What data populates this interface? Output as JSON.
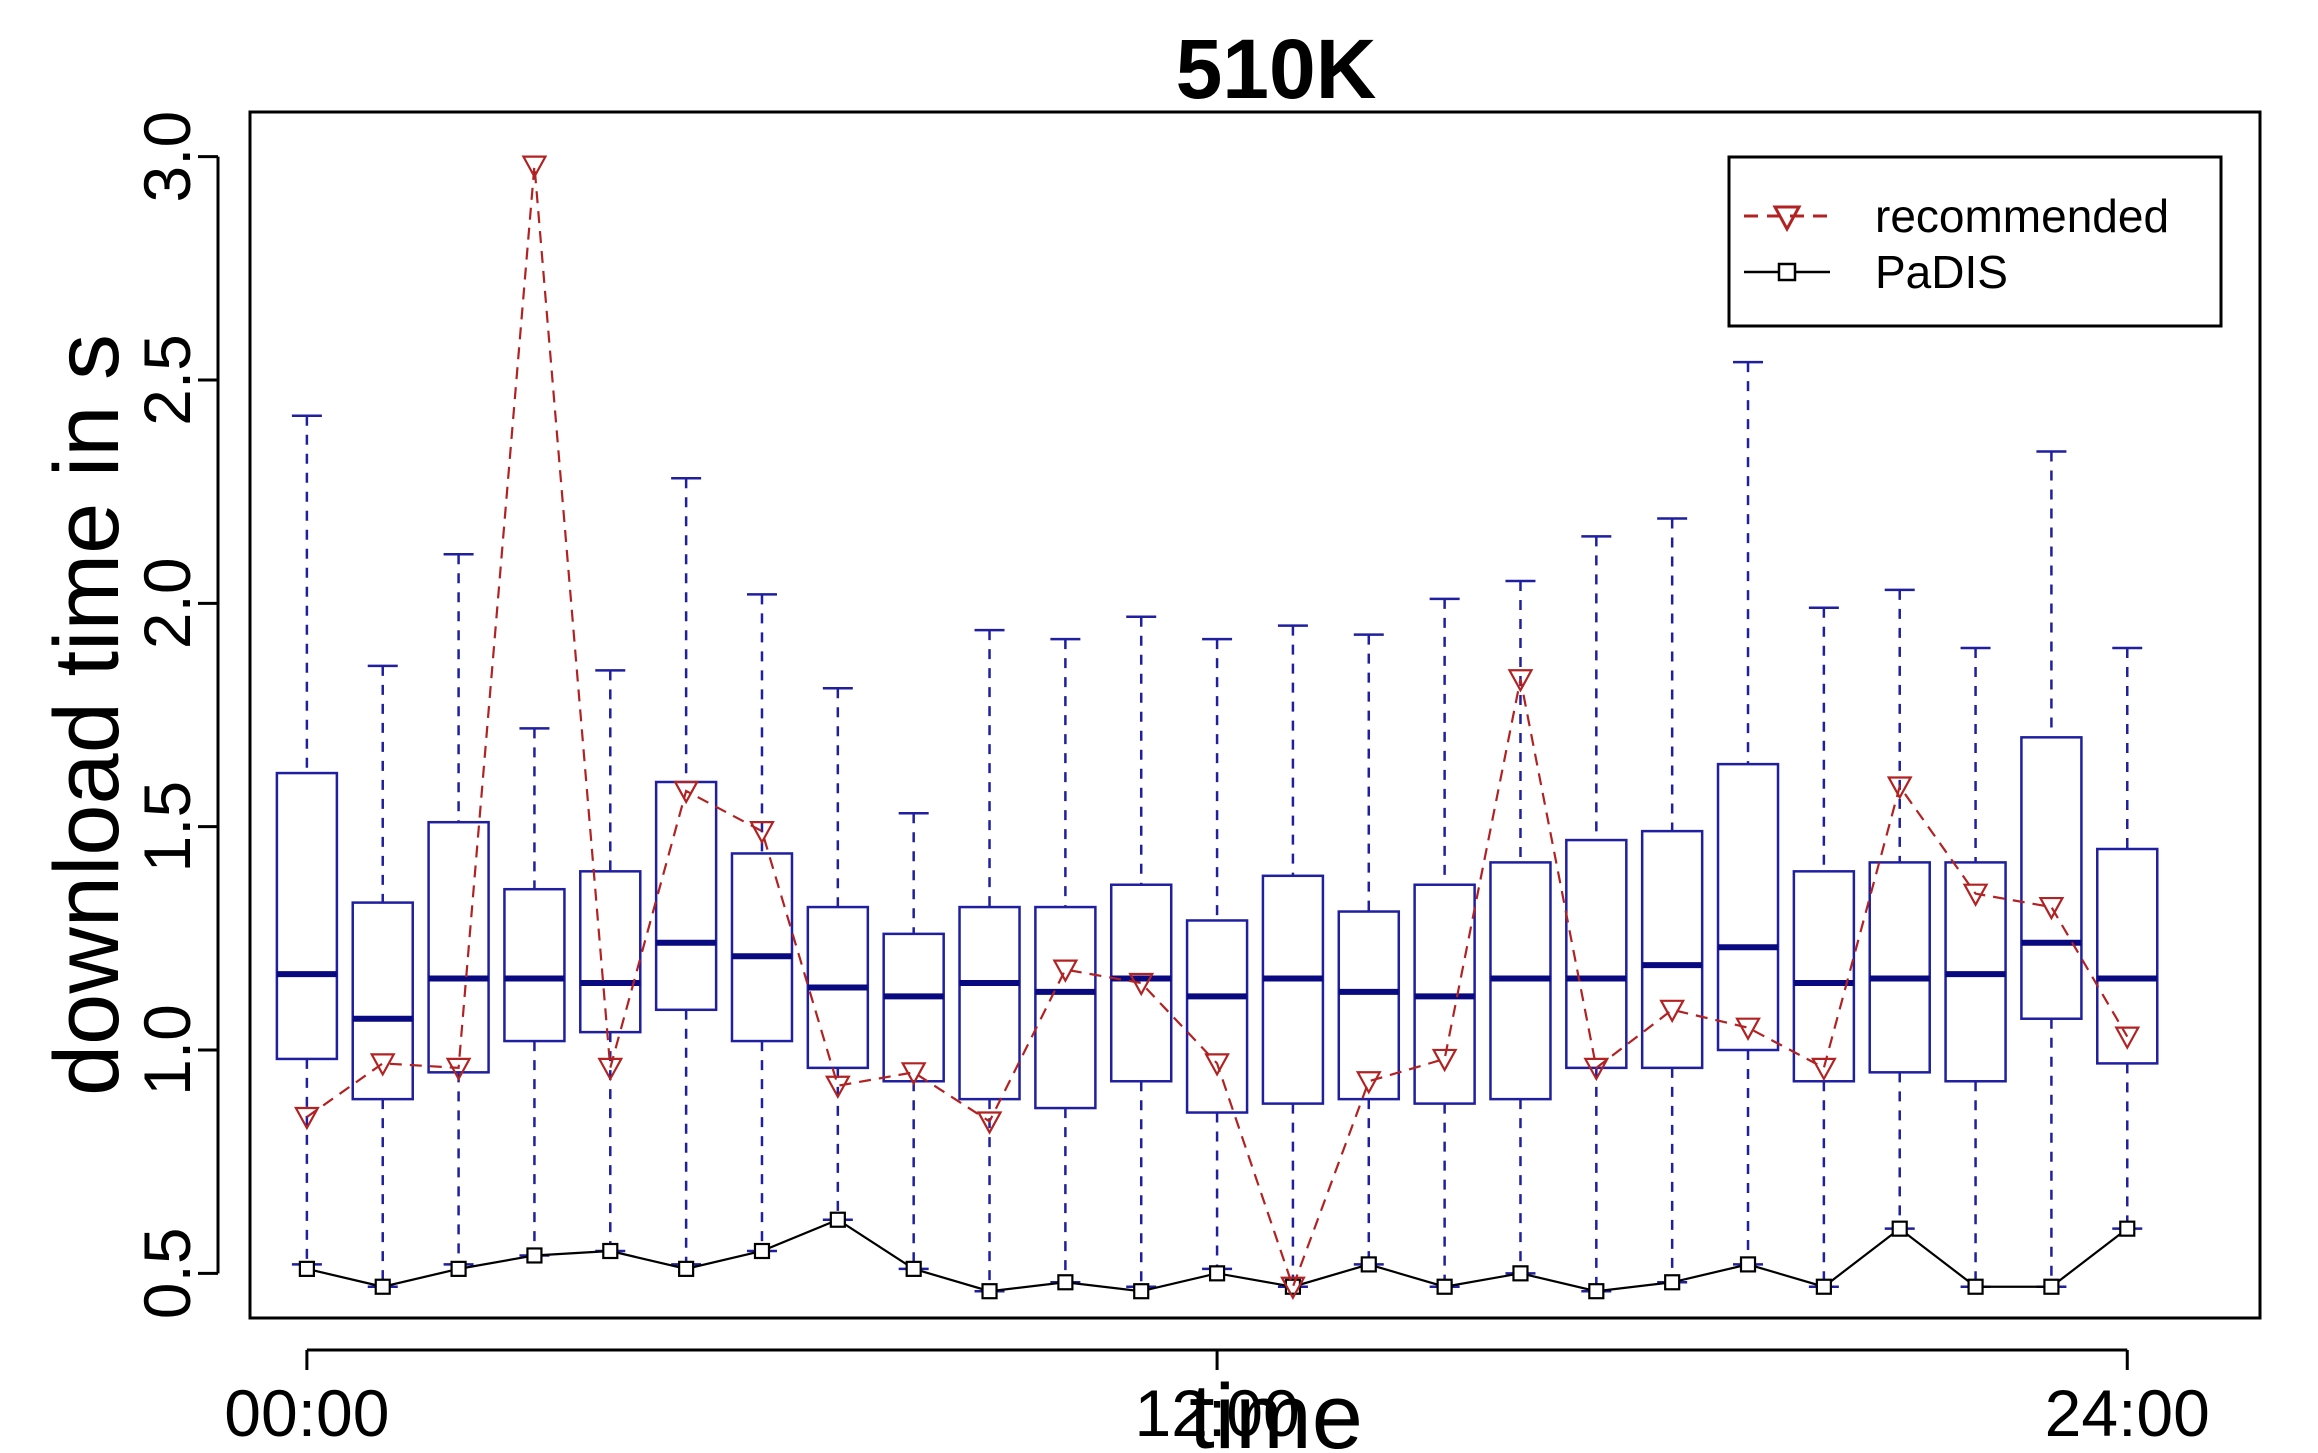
{
  "chart_data": {
    "type": "box",
    "title": "510K",
    "xlabel": "time",
    "ylabel": "download time in s",
    "ylim": [
      0.4,
      3.1
    ],
    "xlim": [
      -0.75,
      25.75
    ],
    "x_ticks": [
      {
        "x": 0,
        "label": "00:00"
      },
      {
        "x": 12,
        "label": "12:00"
      },
      {
        "x": 24,
        "label": "24:00"
      }
    ],
    "y_ticks": [
      {
        "value": 0.5,
        "label": "0.5"
      },
      {
        "value": 1.0,
        "label": "1.0"
      },
      {
        "value": 1.5,
        "label": "1.5"
      },
      {
        "value": 2.0,
        "label": "2.0"
      },
      {
        "value": 2.5,
        "label": "2.5"
      },
      {
        "value": 3.0,
        "label": "3.0"
      }
    ],
    "grid": false,
    "legend_position": "top-right",
    "colors": {
      "box": "#1f1fa0",
      "median": "#0a0a80",
      "recommended": "#b22222",
      "padis": "#000000"
    },
    "boxes": [
      {
        "x": 0,
        "lo": 0.52,
        "q1": 0.98,
        "median": 1.17,
        "q3": 1.62,
        "hi": 2.42
      },
      {
        "x": 1,
        "lo": 0.47,
        "q1": 0.89,
        "median": 1.07,
        "q3": 1.33,
        "hi": 1.86
      },
      {
        "x": 2,
        "lo": 0.52,
        "q1": 0.95,
        "median": 1.16,
        "q3": 1.51,
        "hi": 2.11
      },
      {
        "x": 3,
        "lo": 0.54,
        "q1": 1.02,
        "median": 1.16,
        "q3": 1.36,
        "hi": 1.72
      },
      {
        "x": 4,
        "lo": 0.55,
        "q1": 1.04,
        "median": 1.15,
        "q3": 1.4,
        "hi": 1.85
      },
      {
        "x": 5,
        "lo": 0.52,
        "q1": 1.09,
        "median": 1.24,
        "q3": 1.6,
        "hi": 2.28
      },
      {
        "x": 6,
        "lo": 0.55,
        "q1": 1.02,
        "median": 1.21,
        "q3": 1.44,
        "hi": 2.02
      },
      {
        "x": 7,
        "lo": 0.62,
        "q1": 0.96,
        "median": 1.14,
        "q3": 1.32,
        "hi": 1.81
      },
      {
        "x": 8,
        "lo": 0.51,
        "q1": 0.93,
        "median": 1.12,
        "q3": 1.26,
        "hi": 1.53
      },
      {
        "x": 9,
        "lo": 0.46,
        "q1": 0.89,
        "median": 1.15,
        "q3": 1.32,
        "hi": 1.94
      },
      {
        "x": 10,
        "lo": 0.48,
        "q1": 0.87,
        "median": 1.13,
        "q3": 1.32,
        "hi": 1.92
      },
      {
        "x": 11,
        "lo": 0.47,
        "q1": 0.93,
        "median": 1.16,
        "q3": 1.37,
        "hi": 1.97
      },
      {
        "x": 12,
        "lo": 0.51,
        "q1": 0.86,
        "median": 1.12,
        "q3": 1.29,
        "hi": 1.92
      },
      {
        "x": 13,
        "lo": 0.47,
        "q1": 0.88,
        "median": 1.16,
        "q3": 1.39,
        "hi": 1.95
      },
      {
        "x": 14,
        "lo": 0.52,
        "q1": 0.89,
        "median": 1.13,
        "q3": 1.31,
        "hi": 1.93
      },
      {
        "x": 15,
        "lo": 0.47,
        "q1": 0.88,
        "median": 1.12,
        "q3": 1.37,
        "hi": 2.01
      },
      {
        "x": 16,
        "lo": 0.5,
        "q1": 0.89,
        "median": 1.16,
        "q3": 1.42,
        "hi": 2.05
      },
      {
        "x": 17,
        "lo": 0.46,
        "q1": 0.96,
        "median": 1.16,
        "q3": 1.47,
        "hi": 2.15
      },
      {
        "x": 18,
        "lo": 0.48,
        "q1": 0.96,
        "median": 1.19,
        "q3": 1.49,
        "hi": 2.19
      },
      {
        "x": 19,
        "lo": 0.52,
        "q1": 1.0,
        "median": 1.23,
        "q3": 1.64,
        "hi": 2.54
      },
      {
        "x": 20,
        "lo": 0.47,
        "q1": 0.93,
        "median": 1.15,
        "q3": 1.4,
        "hi": 1.99
      },
      {
        "x": 21,
        "lo": 0.6,
        "q1": 0.95,
        "median": 1.16,
        "q3": 1.42,
        "hi": 2.03
      },
      {
        "x": 22,
        "lo": 0.47,
        "q1": 0.93,
        "median": 1.17,
        "q3": 1.42,
        "hi": 1.9
      },
      {
        "x": 23,
        "lo": 0.47,
        "q1": 1.07,
        "median": 1.24,
        "q3": 1.7,
        "hi": 2.34
      },
      {
        "x": 24,
        "lo": 0.6,
        "q1": 0.97,
        "median": 1.16,
        "q3": 1.45,
        "hi": 1.9
      }
    ],
    "series": [
      {
        "name": "recommended",
        "style": "dashed",
        "marker": "triangle-down",
        "x": [
          0,
          1,
          2,
          3,
          4,
          5,
          6,
          7,
          8,
          9,
          10,
          11,
          12,
          13,
          14,
          15,
          16,
          17,
          18,
          19,
          20,
          21,
          22,
          23,
          24
        ],
        "values": [
          0.85,
          0.97,
          0.96,
          2.98,
          0.96,
          1.58,
          1.49,
          0.92,
          0.95,
          0.84,
          1.18,
          1.15,
          0.97,
          0.47,
          0.93,
          0.98,
          1.83,
          0.96,
          1.09,
          1.05,
          0.96,
          1.59,
          1.35,
          1.32,
          1.03
        ]
      },
      {
        "name": "PaDIS",
        "style": "solid",
        "marker": "square",
        "x": [
          0,
          1,
          2,
          3,
          4,
          5,
          6,
          7,
          8,
          9,
          10,
          11,
          12,
          13,
          14,
          15,
          16,
          17,
          18,
          19,
          20,
          21,
          22,
          23,
          24
        ],
        "values": [
          0.51,
          0.47,
          0.51,
          0.54,
          0.55,
          0.51,
          0.55,
          0.62,
          0.51,
          0.46,
          0.48,
          0.46,
          0.5,
          0.47,
          0.52,
          0.47,
          0.5,
          0.46,
          0.48,
          0.52,
          0.47,
          0.6,
          0.47,
          0.47,
          0.6
        ]
      }
    ]
  }
}
